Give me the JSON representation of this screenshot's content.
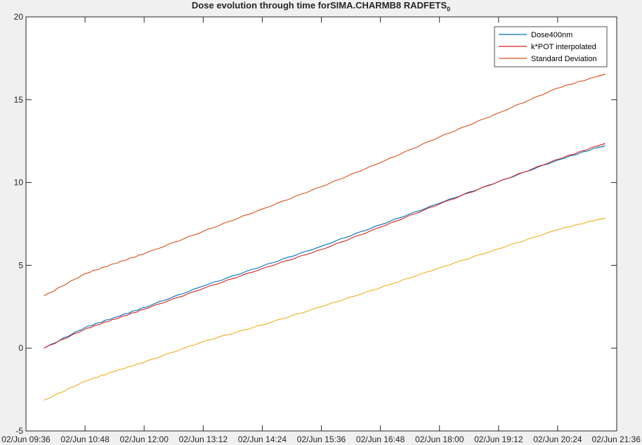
{
  "chart_data": {
    "type": "line",
    "title": "Dose evolution through time forSIMA.CHARMB8 RADFETS",
    "title_subscript": "0",
    "xlabel": "",
    "ylabel": "",
    "ylim": [
      -5,
      20
    ],
    "yticks": [
      -5,
      0,
      5,
      10,
      15,
      20
    ],
    "xlim": [
      "2024-06-02T09:36",
      "2024-06-02T21:36"
    ],
    "xticks": [
      {
        "t": "2024-06-02T09:36",
        "label": "02/Jun 09:36"
      },
      {
        "t": "2024-06-02T10:48",
        "label": "02/Jun 10:48"
      },
      {
        "t": "2024-06-02T12:00",
        "label": "02/Jun 12:00"
      },
      {
        "t": "2024-06-02T13:12",
        "label": "02/Jun 13:12"
      },
      {
        "t": "2024-06-02T14:24",
        "label": "02/Jun 14:24"
      },
      {
        "t": "2024-06-02T15:36",
        "label": "02/Jun 15:36"
      },
      {
        "t": "2024-06-02T16:48",
        "label": "02/Jun 16:48"
      },
      {
        "t": "2024-06-02T18:00",
        "label": "02/Jun 18:00"
      },
      {
        "t": "2024-06-02T19:12",
        "label": "02/Jun 19:12"
      },
      {
        "t": "2024-06-02T20:24",
        "label": "02/Jun 20:24"
      },
      {
        "t": "2024-06-02T21:36",
        "label": "02/Jun 21:36"
      }
    ],
    "grid": false,
    "legend_position": "top-right",
    "series": [
      {
        "name": "Dose400nm",
        "color": "#0072bd",
        "x": [
          "2024-06-02T09:58",
          "2024-06-02T10:48",
          "2024-06-02T11:24",
          "2024-06-02T12:00",
          "2024-06-02T13:12",
          "2024-06-02T14:24",
          "2024-06-02T15:36",
          "2024-06-02T16:48",
          "2024-06-02T18:00",
          "2024-06-02T19:12",
          "2024-06-02T20:24",
          "2024-06-02T21:12",
          "2024-06-02T21:22"
        ],
        "y": [
          0.0,
          1.25,
          1.85,
          2.45,
          3.75,
          4.95,
          6.15,
          7.45,
          8.75,
          10.05,
          11.35,
          12.1,
          12.2
        ]
      },
      {
        "name": "k*POT interpolated",
        "color": "#d62222",
        "x": [
          "2024-06-02T09:58",
          "2024-06-02T10:48",
          "2024-06-02T11:24",
          "2024-06-02T12:00",
          "2024-06-02T13:12",
          "2024-06-02T14:24",
          "2024-06-02T15:36",
          "2024-06-02T16:48",
          "2024-06-02T18:00",
          "2024-06-02T19:12",
          "2024-06-02T20:24",
          "2024-06-02T21:12",
          "2024-06-02T21:22"
        ],
        "y": [
          0.0,
          1.15,
          1.75,
          2.35,
          3.6,
          4.8,
          5.95,
          7.3,
          8.7,
          10.05,
          11.4,
          12.2,
          12.35
        ]
      },
      {
        "name": "Standard Deviation",
        "color": "#d95319",
        "x": [
          "2024-06-02T09:58",
          "2024-06-02T10:48",
          "2024-06-02T11:24",
          "2024-06-02T12:00",
          "2024-06-02T13:12",
          "2024-06-02T14:24",
          "2024-06-02T15:36",
          "2024-06-02T16:48",
          "2024-06-02T18:00",
          "2024-06-02T19:12",
          "2024-06-02T20:24",
          "2024-06-02T21:12",
          "2024-06-02T21:22"
        ],
        "y": [
          3.15,
          4.5,
          5.1,
          5.7,
          7.05,
          8.4,
          9.75,
          11.2,
          12.75,
          14.2,
          15.7,
          16.4,
          16.55
        ]
      },
      {
        "color": "#edb120",
        "x": [
          "2024-06-02T09:58",
          "2024-06-02T10:48",
          "2024-06-02T11:24",
          "2024-06-02T12:00",
          "2024-06-02T13:12",
          "2024-06-02T14:24",
          "2024-06-02T15:36",
          "2024-06-02T16:48",
          "2024-06-02T18:00",
          "2024-06-02T19:12",
          "2024-06-02T20:24",
          "2024-06-02T21:12",
          "2024-06-02T21:22"
        ],
        "y": [
          -3.15,
          -2.0,
          -1.4,
          -0.85,
          0.4,
          1.4,
          2.5,
          3.65,
          4.85,
          6.0,
          7.15,
          7.75,
          7.85
        ]
      }
    ]
  }
}
